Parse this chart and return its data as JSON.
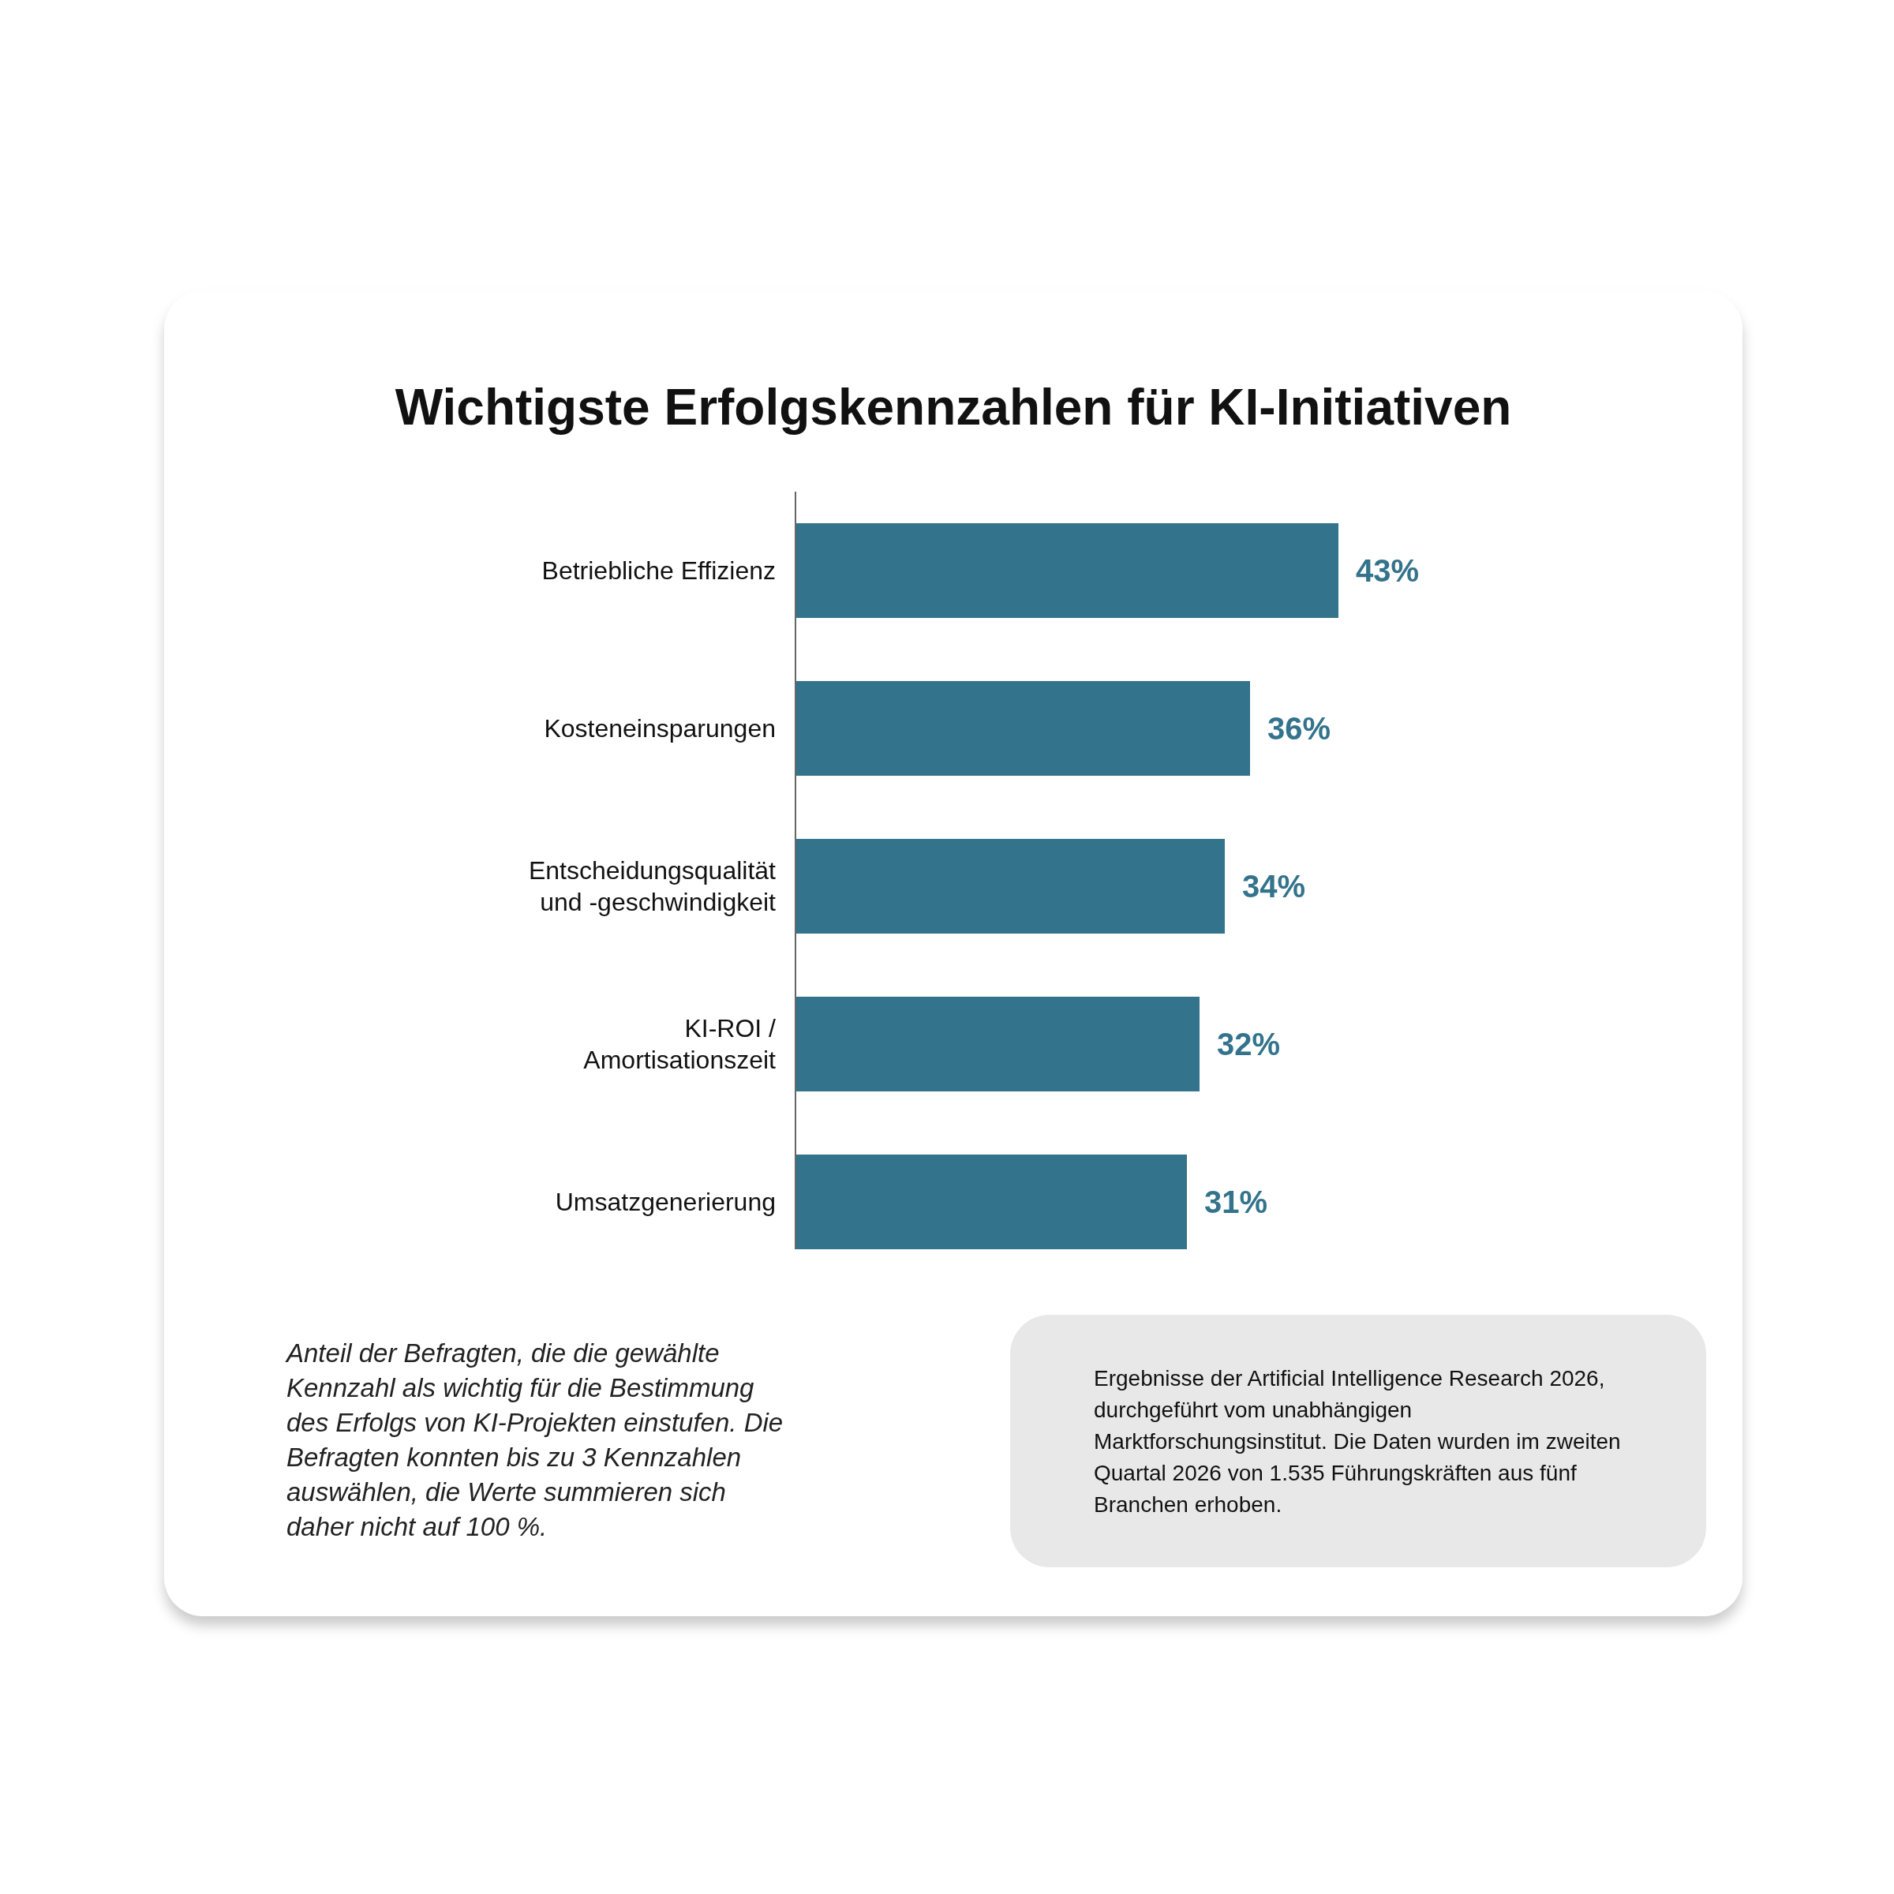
{
  "chart_data": {
    "type": "bar",
    "orientation": "horizontal",
    "title": "Wichtigste Erfolgskennzahlen für KI-Initiativen",
    "categories": [
      "Betriebliche Effizienz",
      "Kosteneinsparungen",
      "Entscheidungsqualität und -geschwindigkeit",
      "KI-ROI / Amortisationszeit",
      "Umsatzgenerierung"
    ],
    "values": [
      43,
      36,
      34,
      32,
      31
    ],
    "color": "#33738c",
    "data_labels": true,
    "value_labels": [
      "43%",
      "36%",
      "34%",
      "32%",
      "31%"
    ],
    "annotations": [
      "Anteil der Befragten, die die gewählte Kennzahl als wichtig für die Bestimmung des Erfolgs von KI-Projekten einstufen. Die Befragten konnten bis zu 3 Kennzahlen auswählen, die Werte summieren sich daher nicht auf 100 %.",
      "Ergebnisse der Artificial Intelligence Research 2026, durchgeführt vom unabhängigen Marktforschungsinstitut. Die Daten wurden im zweiten Quartal 2026 von 1.535 Führungskräften aus fünf Branchen erhoben."
    ]
  }
}
